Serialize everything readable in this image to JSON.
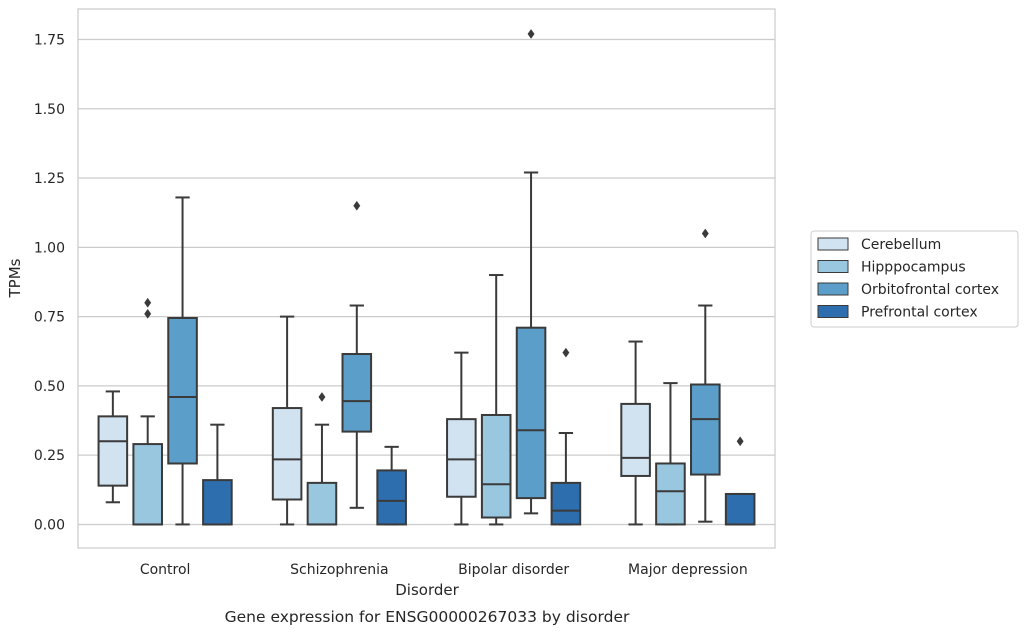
{
  "chart_data": {
    "type": "box",
    "title": "Gene expression for ENSG00000267033 by disorder",
    "xlabel": "Disorder",
    "ylabel": "TPMs",
    "ylim": [
      -0.085,
      1.86
    ],
    "yticks": [
      0.0,
      0.25,
      0.5,
      0.75,
      1.0,
      1.25,
      1.5,
      1.75
    ],
    "ytick_labels": [
      "0.00",
      "0.25",
      "0.50",
      "0.75",
      "1.00",
      "1.25",
      "1.50",
      "1.75"
    ],
    "grid": "horizontal",
    "legend_position": "right",
    "categories": [
      "Control",
      "Schizophrenia",
      "Bipolar disorder",
      "Major depression"
    ],
    "series": [
      {
        "name": "Cerebellum",
        "color": "#d1e2f1",
        "boxes": [
          {
            "whisker_low": 0.08,
            "q1": 0.14,
            "median": 0.3,
            "q3": 0.39,
            "whisker_high": 0.48,
            "outliers": []
          },
          {
            "whisker_low": 0.0,
            "q1": 0.09,
            "median": 0.235,
            "q3": 0.42,
            "whisker_high": 0.75,
            "outliers": []
          },
          {
            "whisker_low": 0.0,
            "q1": 0.1,
            "median": 0.235,
            "q3": 0.38,
            "whisker_high": 0.62,
            "outliers": []
          },
          {
            "whisker_low": 0.0,
            "q1": 0.175,
            "median": 0.24,
            "q3": 0.435,
            "whisker_high": 0.66,
            "outliers": []
          }
        ]
      },
      {
        "name": "Hipppocampus",
        "color": "#9ac7e0",
        "boxes": [
          {
            "whisker_low": 0.0,
            "q1": 0.0,
            "median": 0.0,
            "q3": 0.29,
            "whisker_high": 0.39,
            "outliers": [
              0.76,
              0.8
            ]
          },
          {
            "whisker_low": 0.0,
            "q1": 0.0,
            "median": 0.0,
            "q3": 0.15,
            "whisker_high": 0.36,
            "outliers": [
              0.46
            ]
          },
          {
            "whisker_low": 0.0,
            "q1": 0.025,
            "median": 0.145,
            "q3": 0.395,
            "whisker_high": 0.9,
            "outliers": []
          },
          {
            "whisker_low": 0.0,
            "q1": 0.0,
            "median": 0.12,
            "q3": 0.22,
            "whisker_high": 0.51,
            "outliers": []
          }
        ]
      },
      {
        "name": "Orbitofrontal cortex",
        "color": "#5b9ec9",
        "boxes": [
          {
            "whisker_low": 0.0,
            "q1": 0.22,
            "median": 0.46,
            "q3": 0.745,
            "whisker_high": 1.18,
            "outliers": []
          },
          {
            "whisker_low": 0.06,
            "q1": 0.335,
            "median": 0.445,
            "q3": 0.615,
            "whisker_high": 0.79,
            "outliers": [
              1.15
            ]
          },
          {
            "whisker_low": 0.04,
            "q1": 0.095,
            "median": 0.34,
            "q3": 0.71,
            "whisker_high": 1.27,
            "outliers": [
              1.77
            ]
          },
          {
            "whisker_low": 0.01,
            "q1": 0.18,
            "median": 0.38,
            "q3": 0.505,
            "whisker_high": 0.79,
            "outliers": [
              1.05
            ]
          }
        ]
      },
      {
        "name": "Prefrontal cortex",
        "color": "#2d6eaf",
        "boxes": [
          {
            "whisker_low": 0.0,
            "q1": 0.0,
            "median": 0.0,
            "q3": 0.16,
            "whisker_high": 0.36,
            "outliers": []
          },
          {
            "whisker_low": 0.0,
            "q1": 0.0,
            "median": 0.085,
            "q3": 0.195,
            "whisker_high": 0.28,
            "outliers": []
          },
          {
            "whisker_low": 0.0,
            "q1": 0.0,
            "median": 0.05,
            "q3": 0.15,
            "whisker_high": 0.33,
            "outliers": [
              0.62
            ]
          },
          {
            "whisker_low": 0.0,
            "q1": 0.0,
            "median": 0.0,
            "q3": 0.11,
            "whisker_high": 0.11,
            "outliers": [
              0.3
            ]
          }
        ]
      }
    ],
    "colors": {
      "grid": "#cccccc",
      "spine": "#cccccc",
      "line": "#3a3a3a",
      "text": "#262626"
    }
  }
}
